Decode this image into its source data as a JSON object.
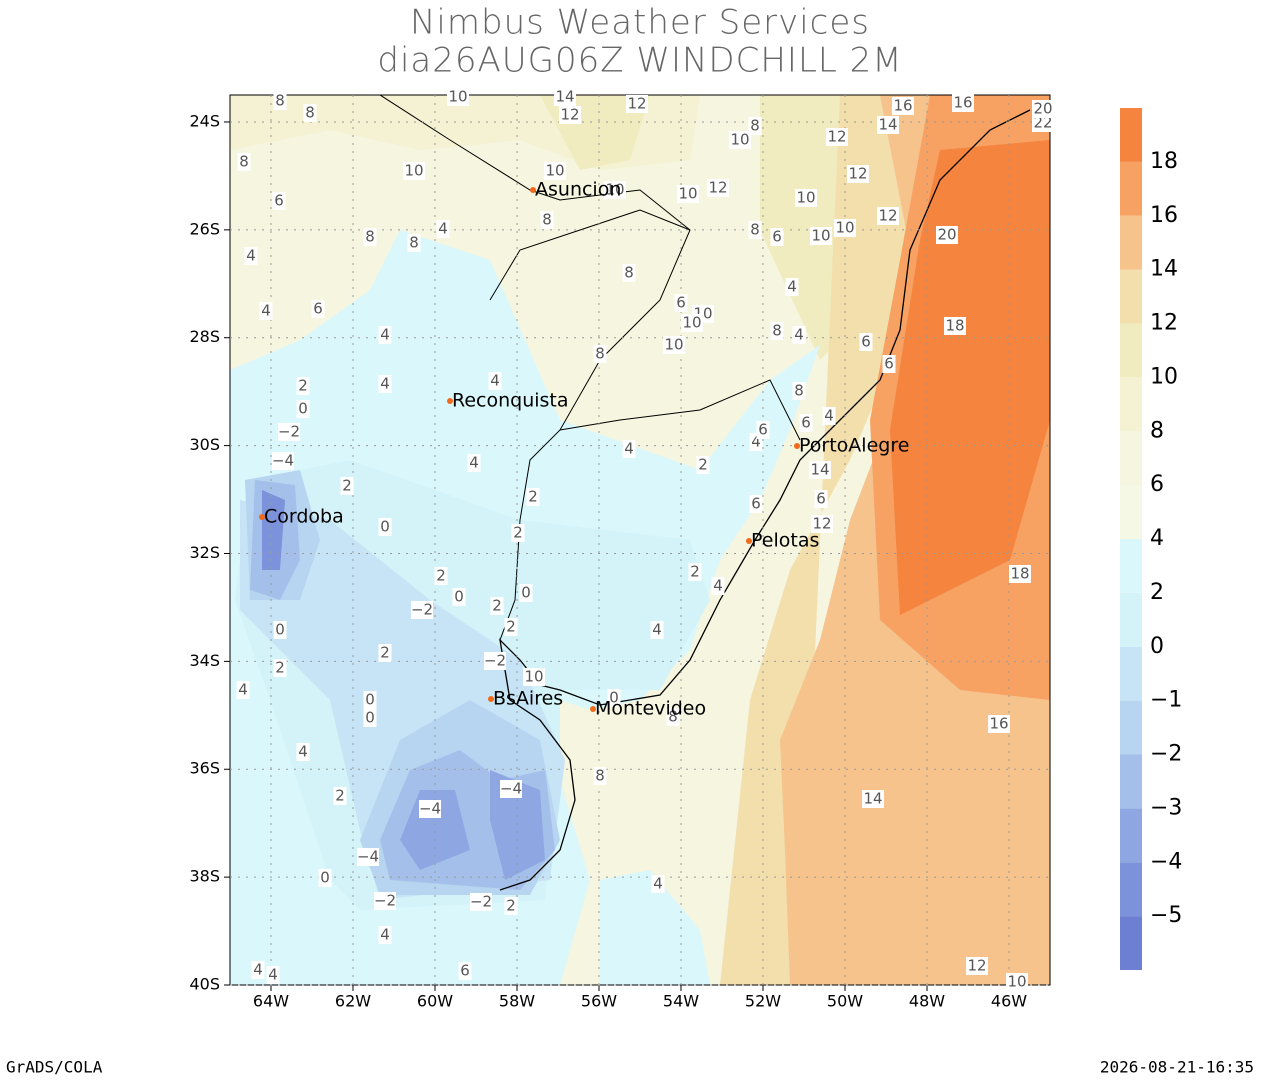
{
  "map": {
    "title": "Nimbus Weather Services",
    "subtitle": "dia26AUG06Z WINDCHILL 2M",
    "xlim": [
      -65,
      -45
    ],
    "ylim": [
      -40,
      -23.5
    ],
    "xticks": [
      {
        "value": -64,
        "label": "64W"
      },
      {
        "value": -62,
        "label": "62W"
      },
      {
        "value": -60,
        "label": "60W"
      },
      {
        "value": -58,
        "label": "58W"
      },
      {
        "value": -56,
        "label": "56W"
      },
      {
        "value": -54,
        "label": "54W"
      },
      {
        "value": -52,
        "label": "52W"
      },
      {
        "value": -50,
        "label": "50W"
      },
      {
        "value": -48,
        "label": "48W"
      },
      {
        "value": -46,
        "label": "46W"
      }
    ],
    "yticks": [
      {
        "value": -24,
        "label": "24S"
      },
      {
        "value": -26,
        "label": "26S"
      },
      {
        "value": -28,
        "label": "28S"
      },
      {
        "value": -30,
        "label": "30S"
      },
      {
        "value": -32,
        "label": "32S"
      },
      {
        "value": -34,
        "label": "34S"
      },
      {
        "value": -36,
        "label": "36S"
      },
      {
        "value": -38,
        "label": "38S"
      },
      {
        "value": -40,
        "label": "40S"
      }
    ],
    "grid": true,
    "cities": [
      "Asuncion",
      "Reconquista",
      "PortoAlegre",
      "Cordoba",
      "Pelotas",
      "BsAires",
      "Montevideo"
    ],
    "contour_labels": [
      "10",
      "14",
      "12",
      "12",
      "8",
      "8",
      "16",
      "16",
      "14",
      "10",
      "8",
      "12",
      "10",
      "10",
      "12",
      "10",
      "10",
      "12",
      "8",
      "6",
      "10",
      "12",
      "8",
      "8",
      "6",
      "10",
      "10",
      "20",
      "8",
      "8",
      "4",
      "4",
      "8",
      "4",
      "4",
      "6",
      "6",
      "10",
      "10",
      "18",
      "4",
      "8",
      "4",
      "10",
      "6",
      "6",
      "8",
      "4",
      "4",
      "2",
      "0",
      "8",
      "6",
      "4",
      "4",
      "6",
      "−2",
      "4",
      "4",
      "2",
      "−4",
      "14",
      "2",
      "2",
      "6",
      "6",
      "0",
      "12",
      "2",
      "2",
      "2",
      "0",
      "4",
      "0",
      "18",
      "−2",
      "2",
      "0",
      "2",
      "4",
      "2",
      "2",
      "−2",
      "10",
      "4",
      "0",
      "0",
      "0",
      "8",
      "16",
      "4",
      "8",
      "2",
      "−4",
      "14",
      "−4",
      "−4",
      "0",
      "4",
      "−2",
      "−2",
      "2",
      "4",
      "4",
      "4",
      "6",
      "12",
      "10",
      "22",
      "20"
    ],
    "colorbar": {
      "levels": [
        {
          "value": -5,
          "label": "−5"
        },
        {
          "value": -4,
          "label": "−4"
        },
        {
          "value": -3,
          "label": "−3"
        },
        {
          "value": -2,
          "label": "−2"
        },
        {
          "value": -1,
          "label": "−1"
        },
        0,
        2,
        4,
        6,
        8,
        10,
        12,
        14,
        16,
        18
      ],
      "colors": [
        "#6c7fd2",
        "#7c92da",
        "#8ea7e2",
        "#a4c0ea",
        "#b7d5f0",
        "#c6e4f5",
        "#d3f3f8",
        "#daf8fb",
        "#f4f8e4",
        "#f5f5e0",
        "#f4f2d2",
        "#f0ecc0",
        "#f2dfac",
        "#f6c38c",
        "#f7a263",
        "#f5843f"
      ]
    },
    "footer_left": "GrADS/COLA",
    "footer_right": "2026-08-21-16:35"
  }
}
